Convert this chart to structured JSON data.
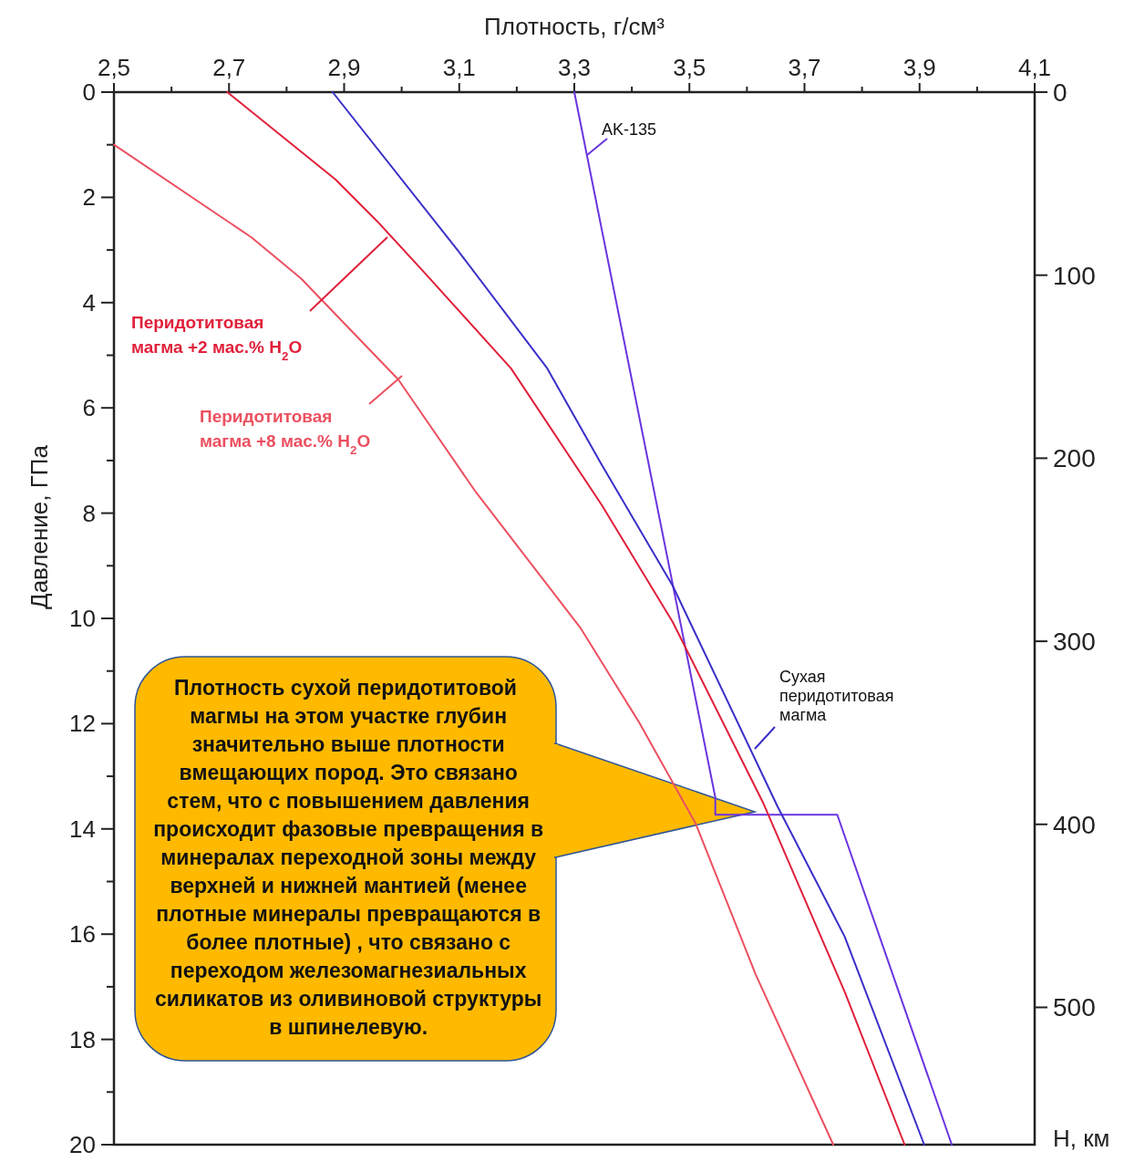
{
  "chart_data": {
    "type": "line",
    "xlabel": "Плотность, г/см³",
    "ylabel": "Давление, ГПа",
    "y2label": "Н, км",
    "xlim": [
      2.5,
      4.1
    ],
    "xticks": [
      {
        "value": 2.5,
        "label": "2,5"
      },
      {
        "value": 2.6,
        "label": null
      },
      {
        "value": 2.7,
        "label": "2,7"
      },
      {
        "value": 2.8,
        "label": null
      },
      {
        "value": 2.9,
        "label": "2,9"
      },
      {
        "value": 3.0,
        "label": null
      },
      {
        "value": 3.1,
        "label": "3,1"
      },
      {
        "value": 3.2,
        "label": null
      },
      {
        "value": 3.3,
        "label": "3,3"
      },
      {
        "value": 3.4,
        "label": null
      },
      {
        "value": 3.5,
        "label": "3,5"
      },
      {
        "value": 3.6,
        "label": null
      },
      {
        "value": 3.7,
        "label": "3,7"
      },
      {
        "value": 3.8,
        "label": null
      },
      {
        "value": 3.9,
        "label": "3,9"
      },
      {
        "value": 4.0,
        "label": null
      },
      {
        "value": 4.1,
        "label": "4,1"
      }
    ],
    "ylim": [
      20,
      0
    ],
    "yticks": [
      0,
      {
        "value": 1,
        "label": null
      },
      2,
      {
        "value": 3,
        "label": null
      },
      4,
      {
        "value": 5,
        "label": null
      },
      6,
      {
        "value": 7,
        "label": null
      },
      8,
      {
        "value": 9,
        "label": null
      },
      10,
      {
        "value": 11,
        "label": null
      },
      12,
      {
        "value": 13,
        "label": null
      },
      14,
      {
        "value": 15,
        "label": null
      },
      16,
      {
        "value": 17,
        "label": null
      },
      18,
      {
        "value": 19,
        "label": null
      },
      20
    ],
    "y2lim": [
      575,
      0
    ],
    "y2ticks": [
      0,
      100,
      200,
      300,
      400,
      500
    ],
    "grid": false,
    "marker": "none",
    "line_style": "solid",
    "series": [
      {
        "name": "AK-135",
        "color": "#6a35e0",
        "x": [
          3.3,
          3.545,
          3.545,
          3.757,
          3.956
        ],
        "values": [
          0,
          13.4,
          13.73,
          13.73,
          20
        ]
      },
      {
        "name": "Сухая перидотитовая магма",
        "color": "#3a2fc8",
        "x": [
          2.88,
          3.097,
          3.253,
          3.346,
          3.471,
          3.653,
          3.77,
          3.908
        ],
        "values": [
          0,
          3.0,
          5.25,
          7.05,
          9.38,
          13.57,
          16.05,
          20
        ]
      },
      {
        "name": "Перидотитовая магма +2 мас.% H$_{2}$O",
        "color": "#e0203a",
        "x": [
          2.697,
          2.885,
          2.958,
          3.037,
          3.19,
          3.348,
          3.471,
          3.628,
          3.77,
          3.874
        ],
        "values": [
          0,
          1.66,
          2.46,
          3.4,
          5.25,
          7.85,
          10.07,
          13.5,
          17.1,
          20
        ]
      },
      {
        "name": "Перидотитовая магма +8 мас.% H$_{2}$O",
        "color": "#ec5060",
        "x": [
          2.5,
          2.739,
          2.825,
          2.994,
          3.127,
          3.31,
          3.414,
          3.511,
          3.615,
          3.75
        ],
        "values": [
          1.0,
          2.76,
          3.54,
          5.46,
          7.57,
          10.17,
          12.0,
          13.9,
          16.76,
          20
        ]
      }
    ],
    "annotations": [
      "Плотность сухой перидотитовой магмы на этом участке глубин значительно выше плотности вмещающих пород. Это связано стем, что с повышением давления происходит фазовые превращения в минералах переходной зоны между верхней и нижней мантией (менее плотные минералы превращаются в более плотные) , что связано с переходом железомагнезиальных силикатов из оливиновой структуры в шпинелевую."
    ]
  }
}
